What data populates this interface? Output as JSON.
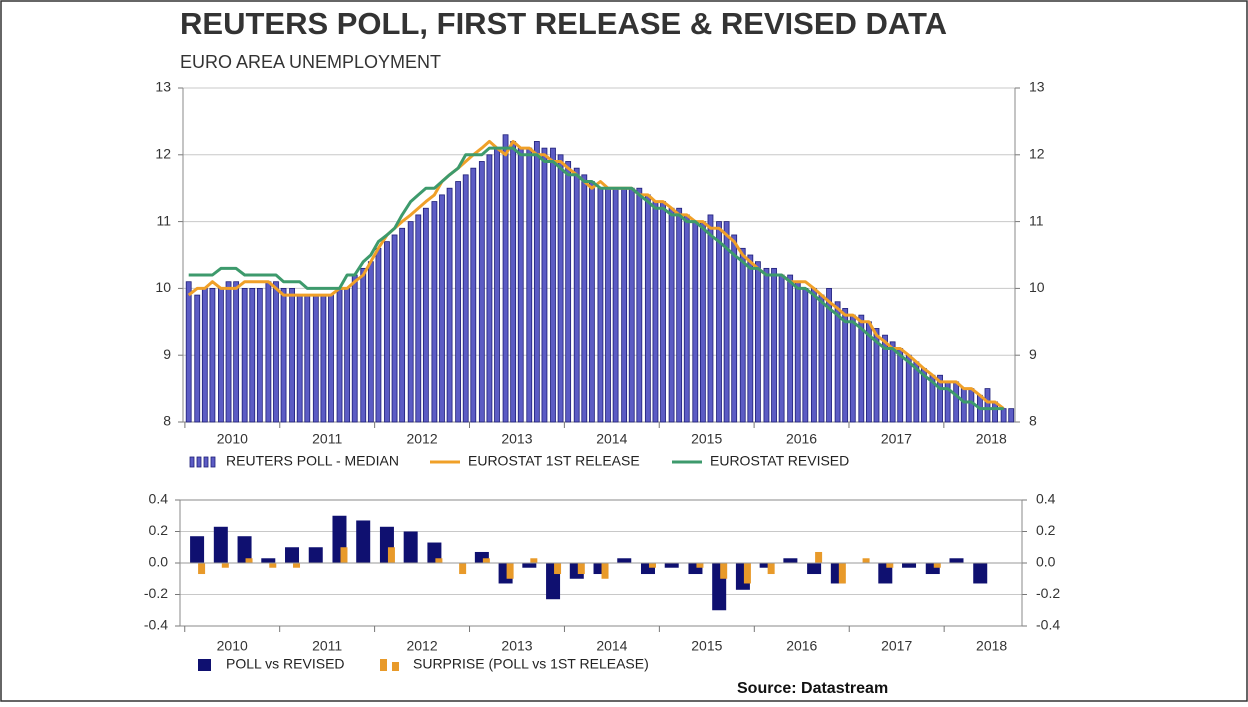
{
  "chart_data": [
    {
      "type": "bar",
      "title": "REUTERS POLL, FIRST RELEASE & REVISED DATA",
      "subtitle": "EURO AREA UNEMPLOYMENT",
      "xlim": [
        2009.98,
        2018.75
      ],
      "xticks": [
        2010,
        2011,
        2012,
        2013,
        2014,
        2015,
        2016,
        2017,
        2018
      ],
      "ylim": [
        8,
        13
      ],
      "yticks": [
        8,
        9,
        10,
        11,
        12,
        13
      ],
      "grid": true,
      "x": [
        2010.04,
        2010.13,
        2010.21,
        2010.29,
        2010.38,
        2010.46,
        2010.54,
        2010.63,
        2010.71,
        2010.79,
        2010.88,
        2010.96,
        2011.04,
        2011.13,
        2011.21,
        2011.29,
        2011.38,
        2011.46,
        2011.54,
        2011.63,
        2011.71,
        2011.79,
        2011.88,
        2011.96,
        2012.04,
        2012.13,
        2012.21,
        2012.29,
        2012.38,
        2012.46,
        2012.54,
        2012.63,
        2012.71,
        2012.79,
        2012.88,
        2012.96,
        2013.04,
        2013.13,
        2013.21,
        2013.29,
        2013.38,
        2013.46,
        2013.54,
        2013.63,
        2013.71,
        2013.79,
        2013.88,
        2013.96,
        2014.04,
        2014.13,
        2014.21,
        2014.29,
        2014.38,
        2014.46,
        2014.54,
        2014.63,
        2014.71,
        2014.79,
        2014.88,
        2014.96,
        2015.04,
        2015.13,
        2015.21,
        2015.29,
        2015.38,
        2015.46,
        2015.54,
        2015.63,
        2015.71,
        2015.79,
        2015.88,
        2015.96,
        2016.04,
        2016.13,
        2016.21,
        2016.29,
        2016.38,
        2016.46,
        2016.54,
        2016.63,
        2016.71,
        2016.79,
        2016.88,
        2016.96,
        2017.04,
        2017.13,
        2017.21,
        2017.29,
        2017.38,
        2017.46,
        2017.54,
        2017.63,
        2017.71,
        2017.79,
        2017.88,
        2017.96,
        2018.04,
        2018.13,
        2018.21,
        2018.29,
        2018.38,
        2018.46,
        2018.54,
        2018.63,
        2018.71
      ],
      "series": [
        {
          "name": "REUTERS POLL - MEDIAN",
          "type": "bar",
          "color": "#5c5cc4",
          "values": [
            10.1,
            9.9,
            10.0,
            10.0,
            10.0,
            10.1,
            10.1,
            10.0,
            10.0,
            10.0,
            10.1,
            10.1,
            10.0,
            10.0,
            9.9,
            9.9,
            9.9,
            9.9,
            9.9,
            10.0,
            10.0,
            10.2,
            10.3,
            10.4,
            10.6,
            10.7,
            10.8,
            10.9,
            11.0,
            11.1,
            11.2,
            11.3,
            11.4,
            11.5,
            11.6,
            11.7,
            11.8,
            11.9,
            12.0,
            12.1,
            12.3,
            12.2,
            12.1,
            12.1,
            12.2,
            12.1,
            12.1,
            12.0,
            11.9,
            11.8,
            11.7,
            11.6,
            11.5,
            11.5,
            11.5,
            11.5,
            11.5,
            11.5,
            11.4,
            11.3,
            11.3,
            11.2,
            11.2,
            11.1,
            11.0,
            11.0,
            11.1,
            11.0,
            11.0,
            10.8,
            10.6,
            10.5,
            10.4,
            10.3,
            10.3,
            10.2,
            10.2,
            10.1,
            10.0,
            10.0,
            9.9,
            10.0,
            9.8,
            9.7,
            9.6,
            9.6,
            9.5,
            9.4,
            9.3,
            9.2,
            9.1,
            9.0,
            8.9,
            8.8,
            8.7,
            8.7,
            8.6,
            8.6,
            8.5,
            8.5,
            8.4,
            8.5,
            8.3,
            8.2,
            8.2
          ]
        },
        {
          "name": "EUROSTAT 1ST RELEASE",
          "type": "line",
          "color": "#f0a028",
          "values": [
            9.9,
            10.0,
            10.0,
            10.1,
            10.0,
            10.0,
            10.0,
            10.1,
            10.1,
            10.1,
            10.1,
            10.0,
            9.9,
            9.9,
            9.9,
            9.9,
            9.9,
            9.9,
            9.9,
            10.0,
            10.0,
            10.1,
            10.2,
            10.4,
            10.6,
            10.8,
            10.9,
            11.0,
            11.1,
            11.2,
            11.3,
            11.4,
            11.6,
            11.7,
            11.8,
            11.9,
            12.0,
            12.1,
            12.2,
            12.1,
            12.0,
            12.2,
            12.1,
            12.1,
            12.0,
            12.0,
            11.9,
            11.9,
            11.8,
            11.7,
            11.6,
            11.5,
            11.6,
            11.5,
            11.5,
            11.5,
            11.5,
            11.4,
            11.4,
            11.3,
            11.3,
            11.2,
            11.1,
            11.1,
            11.0,
            11.0,
            10.9,
            10.9,
            10.8,
            10.7,
            10.5,
            10.4,
            10.3,
            10.2,
            10.2,
            10.2,
            10.1,
            10.1,
            10.1,
            10.0,
            9.9,
            9.8,
            9.7,
            9.6,
            9.6,
            9.5,
            9.5,
            9.3,
            9.2,
            9.1,
            9.1,
            9.0,
            8.9,
            8.8,
            8.7,
            8.6,
            8.6,
            8.6,
            8.5,
            8.5,
            8.4,
            8.3,
            8.3,
            8.2,
            null
          ]
        },
        {
          "name": "EUROSTAT REVISED",
          "type": "line",
          "color": "#3d9a6c",
          "values": [
            10.2,
            10.2,
            10.2,
            10.2,
            10.3,
            10.3,
            10.3,
            10.2,
            10.2,
            10.2,
            10.2,
            10.2,
            10.1,
            10.1,
            10.1,
            10.0,
            10.0,
            10.0,
            10.0,
            10.0,
            10.2,
            10.2,
            10.4,
            10.5,
            10.7,
            10.8,
            10.9,
            11.1,
            11.3,
            11.4,
            11.5,
            11.5,
            11.6,
            11.7,
            11.8,
            12.0,
            12.0,
            12.0,
            12.1,
            12.1,
            12.1,
            12.1,
            12.0,
            12.0,
            12.0,
            11.9,
            11.9,
            11.8,
            11.7,
            11.7,
            11.6,
            11.6,
            11.5,
            11.5,
            11.5,
            11.5,
            11.5,
            11.4,
            11.3,
            11.2,
            11.2,
            11.1,
            11.1,
            11.0,
            11.0,
            10.9,
            10.8,
            10.7,
            10.6,
            10.5,
            10.4,
            10.3,
            10.3,
            10.2,
            10.2,
            10.2,
            10.1,
            10.0,
            10.0,
            9.9,
            9.8,
            9.7,
            9.6,
            9.5,
            9.5,
            9.4,
            9.3,
            9.2,
            9.1,
            9.1,
            9.0,
            8.9,
            8.8,
            8.7,
            8.6,
            8.5,
            8.5,
            8.4,
            8.3,
            8.3,
            8.2,
            8.2,
            8.2,
            8.2,
            null
          ]
        }
      ]
    },
    {
      "type": "bar",
      "annotation": "Source: Datastream",
      "xlim": [
        2009.95,
        2018.82
      ],
      "xticks": [
        2010,
        2011,
        2012,
        2013,
        2014,
        2015,
        2016,
        2017,
        2018
      ],
      "ylim": [
        -0.4,
        0.4
      ],
      "yticks": [
        -0.4,
        -0.2,
        {
          "value": 0,
          "label": "0.0"
        },
        0.2,
        0.4
      ],
      "grid": true,
      "x": [
        2010.13,
        2010.38,
        2010.63,
        2010.88,
        2011.13,
        2011.38,
        2011.63,
        2011.88,
        2012.13,
        2012.38,
        2012.63,
        2012.88,
        2013.13,
        2013.38,
        2013.63,
        2013.88,
        2014.13,
        2014.38,
        2014.63,
        2014.88,
        2015.13,
        2015.38,
        2015.63,
        2015.88,
        2016.13,
        2016.38,
        2016.63,
        2016.88,
        2017.13,
        2017.38,
        2017.63,
        2017.88,
        2018.13,
        2018.38
      ],
      "series": [
        {
          "name": "POLL vs REVISED",
          "type": "bar",
          "color": "#0f1070",
          "values": [
            0.17,
            0.23,
            0.17,
            0.03,
            0.1,
            0.1,
            0.3,
            0.27,
            0.23,
            0.2,
            0.13,
            0,
            0.07,
            -0.13,
            -0.03,
            -0.23,
            -0.1,
            -0.07,
            0.03,
            -0.07,
            -0.03,
            -0.07,
            -0.3,
            -0.17,
            -0.03,
            0.03,
            -0.07,
            -0.13,
            0,
            -0.13,
            -0.03,
            -0.07,
            0.03,
            -0.13
          ]
        },
        {
          "name": "SURPRISE (POLL vs 1ST RELEASE)",
          "type": "bar",
          "color": "#e89a2a",
          "values": [
            -0.07,
            -0.03,
            0.03,
            -0.03,
            -0.03,
            0,
            0.1,
            0,
            0.1,
            0,
            0.03,
            -0.07,
            0.03,
            -0.1,
            0.03,
            -0.07,
            -0.07,
            -0.1,
            0,
            -0.03,
            0,
            -0.03,
            -0.1,
            -0.13,
            -0.07,
            0,
            0.07,
            -0.13,
            0.03,
            -0.03,
            0,
            -0.03,
            0,
            0
          ]
        }
      ]
    }
  ]
}
